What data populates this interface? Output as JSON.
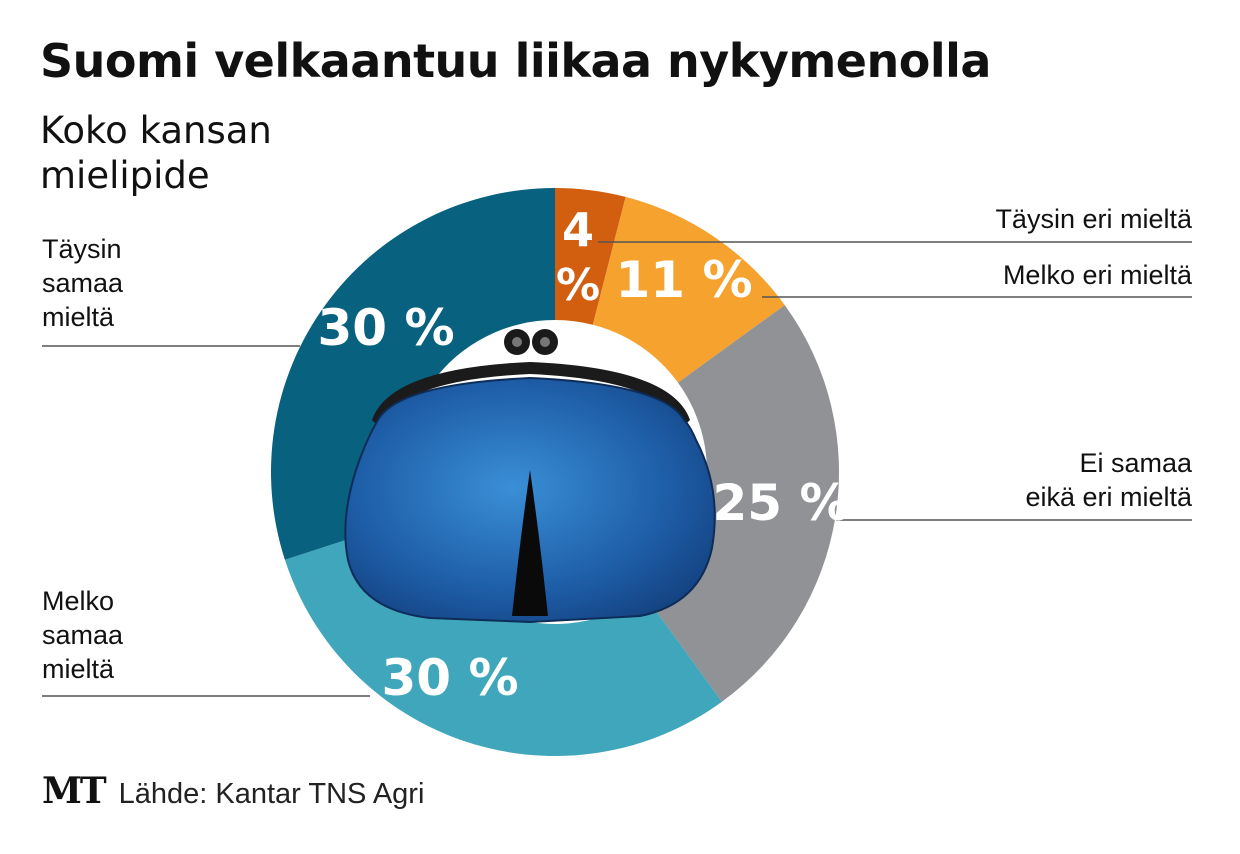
{
  "chart_data": {
    "type": "pie",
    "title": "Suomi velkaantuu liikaa nykymenolla",
    "subtitle": "Koko kansan mielipide",
    "categories": [
      "Täysin eri mieltä",
      "Melko eri mieltä",
      "Ei samaa eikä eri mieltä",
      "Melko samaa mieltä",
      "Täysin samaa mieltä"
    ],
    "values": [
      4,
      11,
      25,
      30,
      30
    ],
    "value_labels": [
      "4 %",
      "11 %",
      "25 %",
      "30 %",
      "30 %"
    ],
    "colors": [
      "#d25f0f",
      "#f5a22e",
      "#909296",
      "#3fa6bb",
      "#08617e"
    ],
    "legend": "labels with leader lines around the ring",
    "source": "Lähde: Kantar TNS Agri"
  },
  "labels": {
    "taysin_eri": "Täysin eri mieltä",
    "melko_eri": "Melko eri mieltä",
    "ei_samaa_1": "Ei samaa",
    "ei_samaa_2": "eikä eri mieltä",
    "taysin_samaa_1": "Täysin",
    "taysin_samaa_2": "samaa",
    "taysin_samaa_3": "mieltä",
    "melko_samaa_1": "Melko",
    "melko_samaa_2": "samaa",
    "melko_samaa_3": "mieltä"
  },
  "subtitle_lines": [
    "Koko kansan",
    "mielipide"
  ],
  "logo": "MT",
  "icons": {
    "center": "coin-purse-icon"
  }
}
